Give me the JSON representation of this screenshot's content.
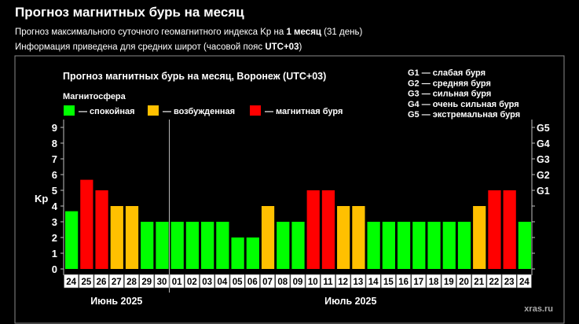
{
  "page": {
    "title": "Прогноз магнитных бурь на месяц",
    "subtitle1": {
      "prefix": "Прогноз максимального суточного геомагнитного индекса Kp на ",
      "bold": "1 месяц",
      "suffix": " (31 день)"
    },
    "subtitle2": {
      "prefix": "Информация приведена для средних широт (часовой пояс ",
      "bold": "UTC+03",
      "suffix": ")"
    }
  },
  "colors": {
    "quiet": "#00ff00",
    "active": "#ffc000",
    "storm": "#ff0000",
    "background": "#000000"
  },
  "chart_data": {
    "type": "bar",
    "title": "Прогноз магнитных бурь на месяц, Воронеж (UTC+03)",
    "ylabel": "Kp",
    "ylim": [
      0,
      9
    ],
    "yticks": [
      "0",
      "1",
      "2",
      "3",
      "4",
      "5",
      "6",
      "7",
      "8",
      "9"
    ],
    "right_axis": [
      {
        "label": "G1",
        "value": 5
      },
      {
        "label": "G2",
        "value": 6
      },
      {
        "label": "G3",
        "value": 7
      },
      {
        "label": "G4",
        "value": 8
      },
      {
        "label": "G5",
        "value": 9
      }
    ],
    "legend_title": "Магнитосфера",
    "legend": [
      {
        "label": "— спокойная",
        "color": "#00ff00"
      },
      {
        "label": "— возбужденная",
        "color": "#ffc000"
      },
      {
        "label": "— магнитная буря",
        "color": "#ff0000"
      }
    ],
    "g_legend": [
      "G1 — слабая буря",
      "G2 — средняя буря",
      "G3 — сильная буря",
      "G4 — очень сильная буря",
      "G5 — экстремальная буря"
    ],
    "categories": [
      "24",
      "25",
      "26",
      "27",
      "28",
      "29",
      "30",
      "01",
      "02",
      "03",
      "04",
      "05",
      "06",
      "07",
      "08",
      "09",
      "10",
      "11",
      "12",
      "13",
      "14",
      "15",
      "16",
      "17",
      "18",
      "19",
      "20",
      "21",
      "22",
      "23",
      "24"
    ],
    "values": [
      3.67,
      5.67,
      5,
      4,
      4,
      3,
      3,
      3,
      3,
      3,
      3,
      2,
      2,
      4,
      3,
      3,
      5,
      5,
      4,
      4,
      3,
      3,
      3,
      3,
      3,
      3,
      3,
      4,
      5,
      5,
      3
    ],
    "months": [
      {
        "label": "Июнь 2025",
        "start": 0,
        "end": 6
      },
      {
        "label": "Июль 2025",
        "start": 7,
        "end": 30
      }
    ],
    "watermark": "xras.ru"
  }
}
